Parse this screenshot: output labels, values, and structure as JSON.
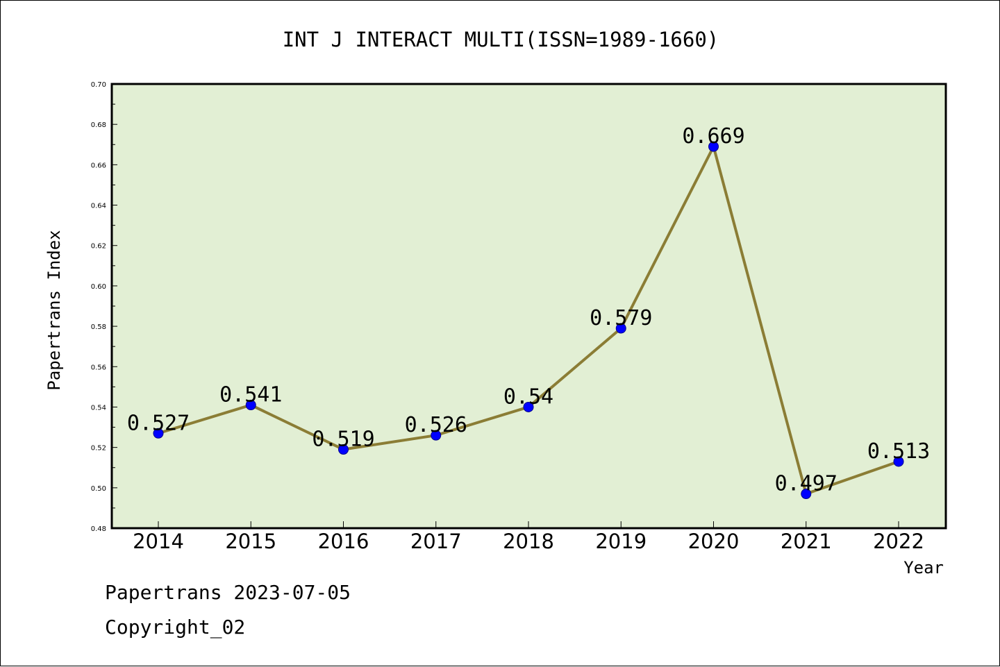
{
  "chart_data": {
    "type": "line",
    "title": "INT J INTERACT MULTI(ISSN=1989-1660)",
    "xlabel": "Year",
    "ylabel": "Papertrans Index",
    "categories": [
      "2014",
      "2015",
      "2016",
      "2017",
      "2018",
      "2019",
      "2020",
      "2021",
      "2022"
    ],
    "series": [
      {
        "values": [
          0.527,
          0.541,
          0.519,
          0.526,
          0.54,
          0.579,
          0.669,
          0.497,
          0.513
        ],
        "data_labels": [
          "0.527",
          "0.541",
          "0.519",
          "0.526",
          "0.54",
          "0.579",
          "0.669",
          "0.497",
          "0.513"
        ]
      }
    ],
    "ylim": [
      0.48,
      0.7
    ],
    "yticks": [
      "0.48",
      "0.50",
      "0.52",
      "0.54",
      "0.56",
      "0.58",
      "0.60",
      "0.62",
      "0.64",
      "0.66",
      "0.68",
      "0.70"
    ],
    "grid": false,
    "colors": {
      "plot_background": "#e2efd4",
      "line": "#8b7d35",
      "marker": "#0000ff"
    }
  },
  "footer": {
    "date_text": "Papertrans 2023-07-05",
    "copyright_text": "Copyright_02"
  }
}
